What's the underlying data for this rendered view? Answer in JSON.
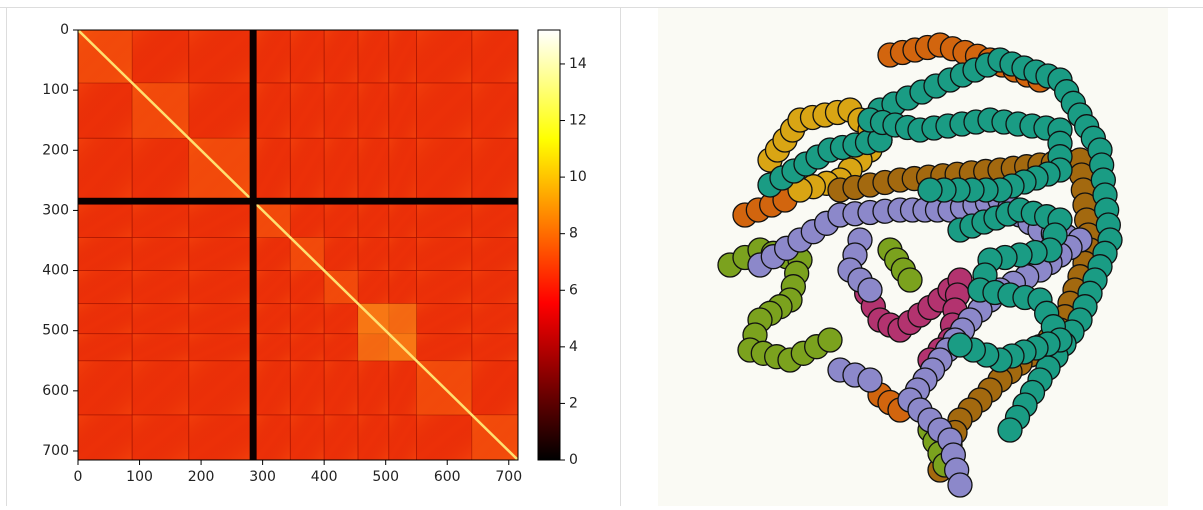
{
  "chart_data": {
    "type": "heatmap",
    "colormap": "hot",
    "xlim": [
      0,
      715
    ],
    "ylim": [
      715,
      0
    ],
    "xticks": [
      0,
      100,
      200,
      300,
      400,
      500,
      600,
      700
    ],
    "yticks": [
      0,
      100,
      200,
      300,
      400,
      500,
      600,
      700
    ],
    "colorbar": {
      "lim": [
        0,
        15.2
      ],
      "ticks": [
        0,
        2,
        4,
        6,
        8,
        10,
        12,
        14
      ]
    }
  }
}
